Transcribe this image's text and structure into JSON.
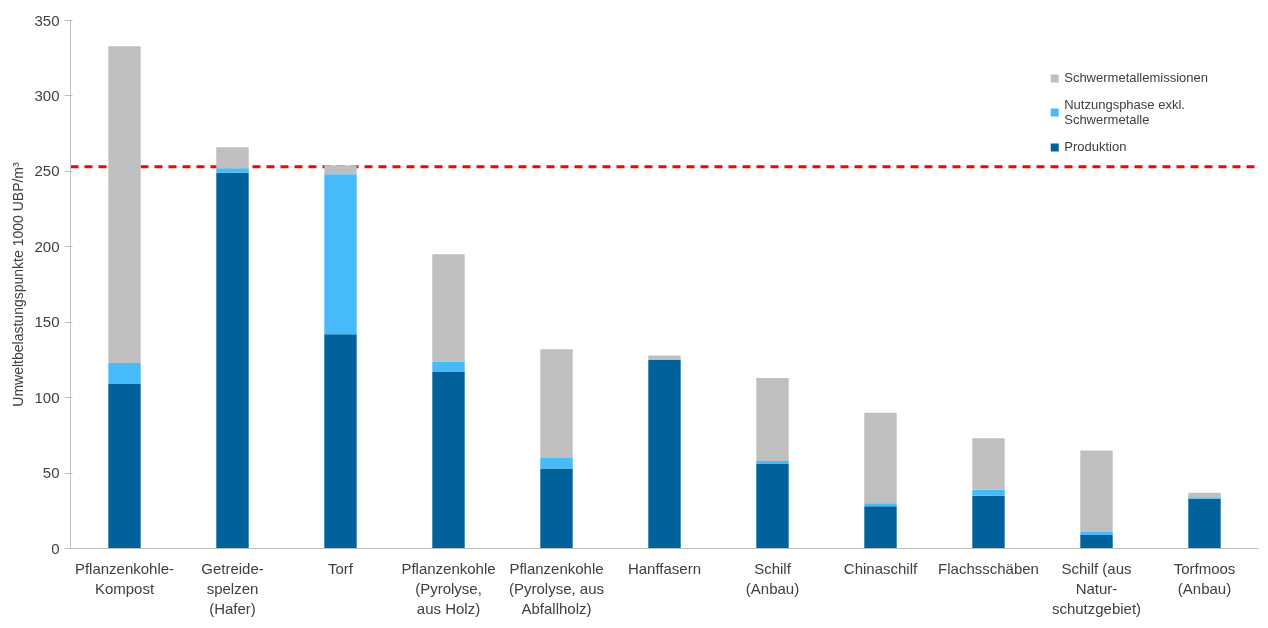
{
  "chart_data": {
    "type": "bar",
    "stacked": true,
    "ylabel": "Umweltbelastungspunkte 1000 UBP/m³",
    "categories": [
      "Pflanzenkohle-\nKompost",
      "Getreide-\nspelzen\n(Hafer)",
      "Torf",
      "Pflanzenkohle\n(Pyrolyse,\naus Holz)",
      "Pflanzenkohle\n(Pyrolyse, aus\nAbfallholz)",
      "Hanffasern",
      "Schilf\n(Anbau)",
      "Chinaschilf",
      "Flachsschäben",
      "Schilf (aus\nNatur-\nschutzgebiet)",
      "Torfmoos\n(Anbau)"
    ],
    "series": [
      {
        "name": "Produktion",
        "color": "#00629b",
        "values": [
          109,
          249,
          142,
          117,
          53,
          125,
          56,
          28,
          35,
          9,
          33
        ]
      },
      {
        "name": "Nutzungsphase exkl.\nSchwermetalle",
        "color": "#47bbfa",
        "values": [
          14,
          3,
          106,
          7,
          7,
          0,
          2,
          2,
          4,
          2,
          1
        ]
      },
      {
        "name": "Schwermetallemissionen",
        "color": "#bfbfbf",
        "values": [
          210,
          14,
          6,
          71,
          72,
          3,
          55,
          60,
          34,
          54,
          3
        ]
      }
    ],
    "ylim": [
      0,
      350
    ],
    "yticks": [
      0,
      50,
      100,
      150,
      200,
      250,
      300,
      350
    ],
    "ref_lines": [
      {
        "axis": "y",
        "value": 253,
        "color": "#ff0000",
        "line_style": "dashed"
      }
    ],
    "grid": false,
    "legend": "top right"
  }
}
